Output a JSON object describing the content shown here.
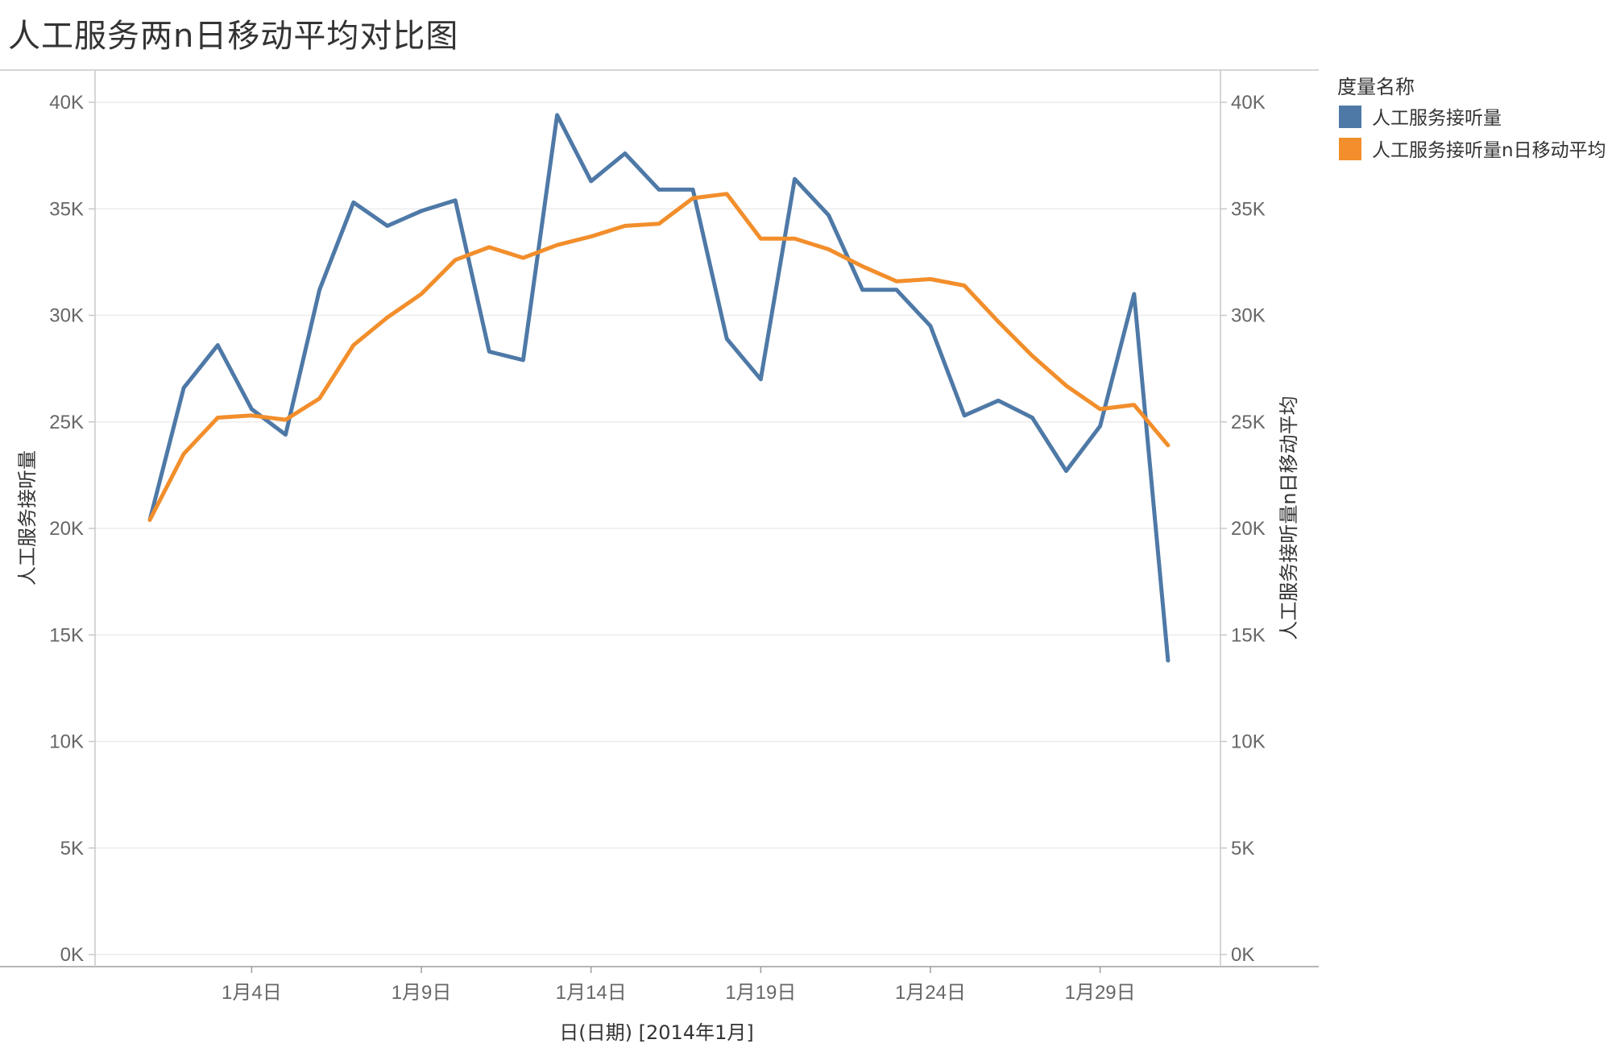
{
  "title": "人工服务两n日移动平均对比图",
  "chart_data": {
    "type": "line",
    "title": "人工服务两n日移动平均对比图",
    "xlabel": "日(日期) [2014年1月]",
    "ylabel_left": "人工服务接听量",
    "ylabel_right": "人工服务接听量n日移动平均",
    "ylim": [
      0,
      40000
    ],
    "y_ticks": [
      "0K",
      "5K",
      "10K",
      "15K",
      "20K",
      "25K",
      "30K",
      "35K",
      "40K"
    ],
    "x_range": [
      1,
      31
    ],
    "x_ticks": [
      {
        "day": 4,
        "label": "1月4日"
      },
      {
        "day": 9,
        "label": "1月9日"
      },
      {
        "day": 14,
        "label": "1月14日"
      },
      {
        "day": 19,
        "label": "1月19日"
      },
      {
        "day": 24,
        "label": "1月24日"
      },
      {
        "day": 29,
        "label": "1月29日"
      }
    ],
    "grid": true,
    "legend_position": "right",
    "legend_title": "度量名称",
    "x": [
      1,
      2,
      3,
      4,
      5,
      6,
      7,
      8,
      9,
      10,
      11,
      12,
      13,
      14,
      15,
      16,
      17,
      18,
      19,
      20,
      21,
      22,
      23,
      24,
      25,
      26,
      27,
      28,
      29,
      30,
      31
    ],
    "series": [
      {
        "name": "人工服务接听量",
        "color": "#4e79a7",
        "values": [
          20400,
          26600,
          28600,
          25600,
          24400,
          31200,
          35300,
          34200,
          34900,
          35400,
          28300,
          27900,
          39400,
          36300,
          37600,
          35900,
          35900,
          28900,
          27000,
          36400,
          34700,
          31200,
          31200,
          29500,
          25300,
          26000,
          25200,
          22700,
          24800,
          31000,
          13800
        ]
      },
      {
        "name": "人工服务接听量n日移动平均",
        "color": "#f28e2b",
        "values": [
          20400,
          23500,
          25200,
          25300,
          25100,
          26100,
          28600,
          29900,
          31000,
          32600,
          33200,
          32700,
          33300,
          33700,
          34200,
          34300,
          35500,
          35700,
          33600,
          33600,
          33100,
          32300,
          31600,
          31700,
          31400,
          29700,
          28100,
          26700,
          25600,
          25800,
          23900
        ]
      }
    ]
  }
}
